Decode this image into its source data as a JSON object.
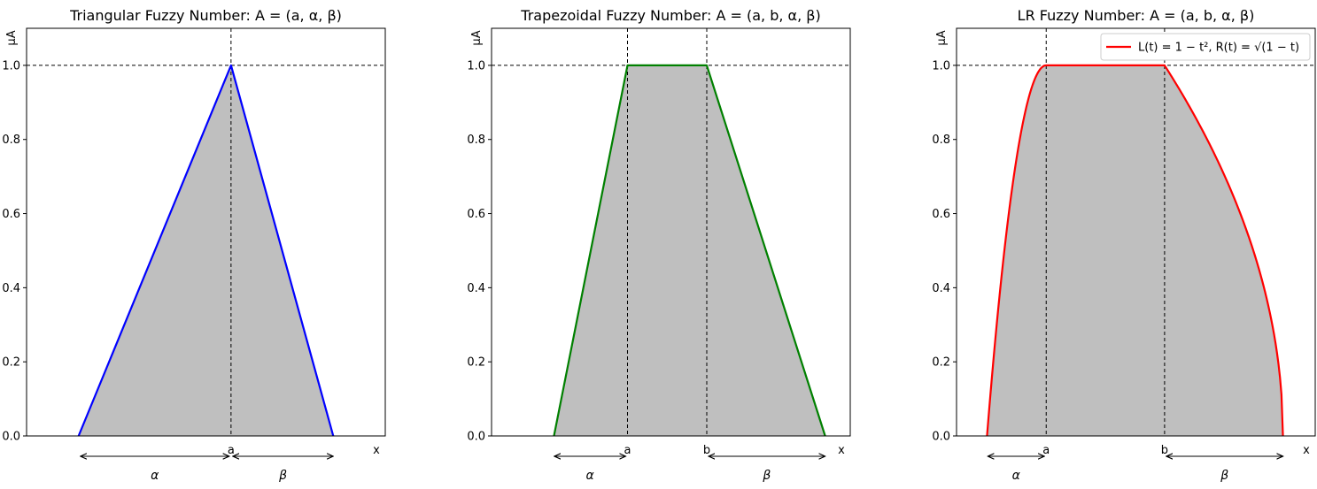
{
  "colors": {
    "fill": "#bfbfbf",
    "triangular": "#0000ff",
    "trapezoidal": "#008000",
    "lr": "#ff0000"
  },
  "chart_data": [
    {
      "type": "area",
      "title": "Triangular Fuzzy Number: A = (a,  α,  β)",
      "ylabel": "μA",
      "xlabel": "x",
      "ylim": [
        0,
        1.1
      ],
      "xlim": [
        0,
        1
      ],
      "yticks": [
        "0.0",
        "0.2",
        "0.4",
        "0.6",
        "0.8",
        "1.0"
      ],
      "xtick_labels": [
        {
          "x": 0.57,
          "label": "a"
        }
      ],
      "alpha_label": "α",
      "beta_label": "β",
      "spread_arrows": [
        {
          "from": 0.15,
          "to": 0.565,
          "label": "α"
        },
        {
          "from": 0.575,
          "to": 0.855,
          "label": "β"
        }
      ],
      "series": [
        {
          "x": [
            0.145,
            0.57,
            0.855
          ],
          "y": [
            0,
            1,
            0
          ]
        }
      ],
      "color": "triangular",
      "ref_lines": {
        "h": 1.0,
        "v": [
          0.57
        ]
      }
    },
    {
      "type": "area",
      "title": "Trapezoidal Fuzzy Number: A = (a,  b,  α,  β)",
      "ylabel": "μA",
      "xlabel": "x",
      "ylim": [
        0,
        1.1
      ],
      "xlim": [
        0,
        1
      ],
      "yticks": [
        "0.0",
        "0.2",
        "0.4",
        "0.6",
        "0.8",
        "1.0"
      ],
      "xtick_labels": [
        {
          "x": 0.379,
          "label": "a"
        },
        {
          "x": 0.6,
          "label": "b"
        }
      ],
      "spread_arrows": [
        {
          "from": 0.175,
          "to": 0.374,
          "label": "α"
        },
        {
          "from": 0.605,
          "to": 0.93,
          "label": "β"
        }
      ],
      "series": [
        {
          "x": [
            0.174,
            0.379,
            0.6,
            0.93
          ],
          "y": [
            0,
            1,
            1,
            0
          ]
        }
      ],
      "color": "trapezoidal",
      "ref_lines": {
        "h": 1.0,
        "v": [
          0.379,
          0.6
        ]
      }
    },
    {
      "type": "area",
      "title": "LR Fuzzy Number: A = (a,  b,  α,  β)",
      "ylabel": "μA",
      "xlabel": "x",
      "ylim": [
        0,
        1.1
      ],
      "xlim": [
        0,
        1
      ],
      "yticks": [
        "0.0",
        "0.2",
        "0.4",
        "0.6",
        "0.8",
        "1.0"
      ],
      "xtick_labels": [
        {
          "x": 0.25,
          "label": "a"
        },
        {
          "x": 0.58,
          "label": "b"
        }
      ],
      "spread_arrows": [
        {
          "from": 0.087,
          "to": 0.245,
          "label": "α"
        },
        {
          "from": 0.585,
          "to": 0.91,
          "label": "β"
        }
      ],
      "lr": {
        "a": 0.25,
        "b": 0.58,
        "alpha": 0.165,
        "beta": 0.33
      },
      "legend": {
        "entry": "L(t) = 1 − t²,    R(t) = √(1 − t)",
        "placement": "top-right"
      },
      "color": "lr",
      "ref_lines": {
        "h": 1.0,
        "v": [
          0.25,
          0.58
        ]
      }
    }
  ]
}
